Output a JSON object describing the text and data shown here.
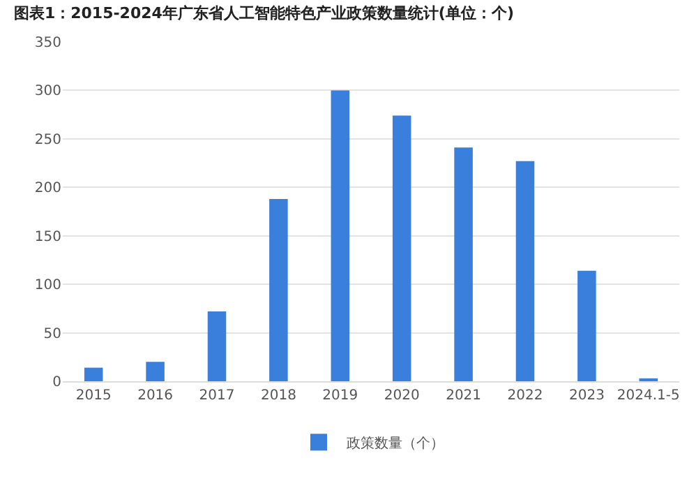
{
  "chart_data": {
    "type": "bar",
    "title": "图表1：2015-2024年广东省人工智能特色产业政策数量统计(单位：个)",
    "categories": [
      "2015",
      "2016",
      "2017",
      "2018",
      "2019",
      "2020",
      "2021",
      "2022",
      "2023",
      "2024.1-5"
    ],
    "series": [
      {
        "name": "政策数量（个）",
        "color": "#3a7fdc",
        "values": [
          14,
          20,
          72,
          188,
          300,
          274,
          241,
          227,
          114,
          3
        ]
      }
    ],
    "ylim": [
      0,
      350
    ],
    "yticks": [
      0,
      50,
      100,
      150,
      200,
      250,
      300,
      350
    ],
    "grid": "y",
    "legend": "bottom"
  }
}
